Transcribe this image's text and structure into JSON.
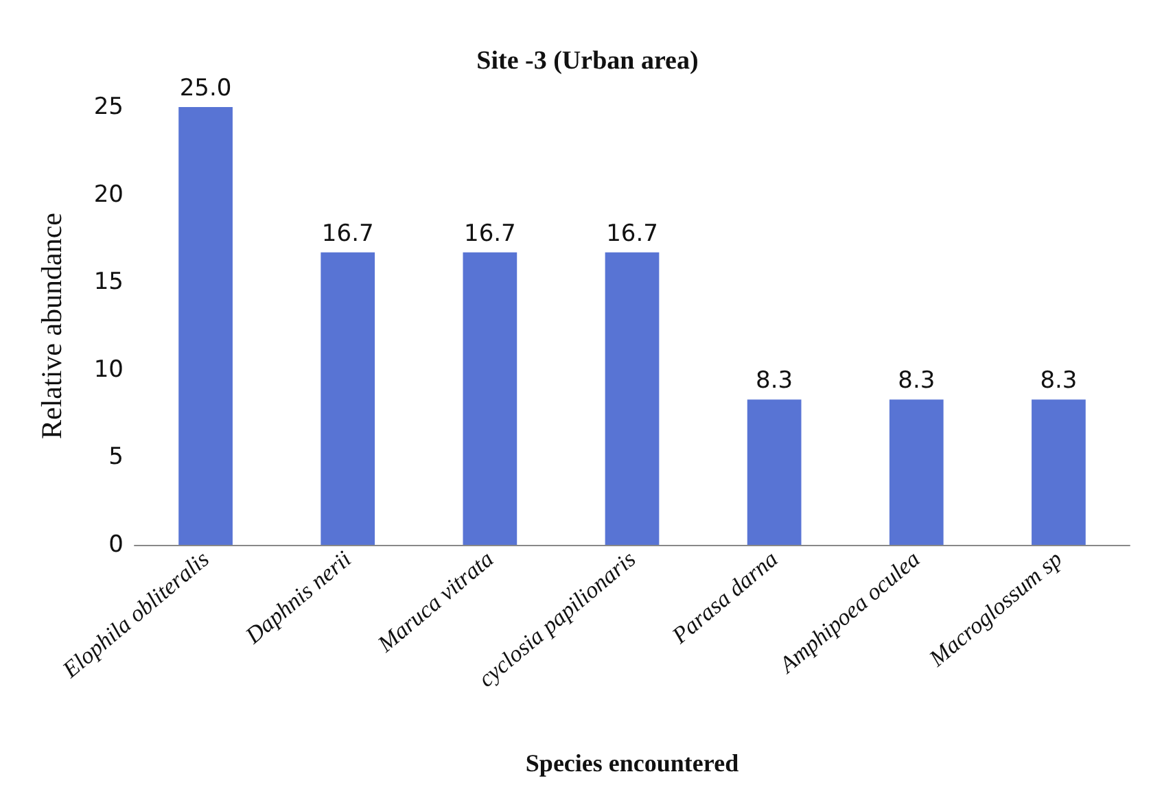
{
  "chart_data": {
    "type": "bar",
    "title": "Site -3 (Urban area)",
    "xlabel": "Species encountered",
    "ylabel": "Relative abundance",
    "categories": [
      "Elophila obliteralis",
      "Daphnis nerii",
      "Maruca vitrata",
      "cyclosia papilionaris",
      "Parasa darna",
      "Amphipoea oculea",
      "Macroglossum sp"
    ],
    "values": [
      25.0,
      16.7,
      16.7,
      16.7,
      8.3,
      8.3,
      8.3
    ],
    "value_labels": [
      "25.0",
      "16.7",
      "16.7",
      "16.7",
      "8.3",
      "8.3",
      "8.3"
    ],
    "color": "#5874d4",
    "ylim": [
      0,
      25
    ],
    "yticks": [
      0,
      5,
      10,
      15,
      20,
      25
    ],
    "grid": false
  }
}
